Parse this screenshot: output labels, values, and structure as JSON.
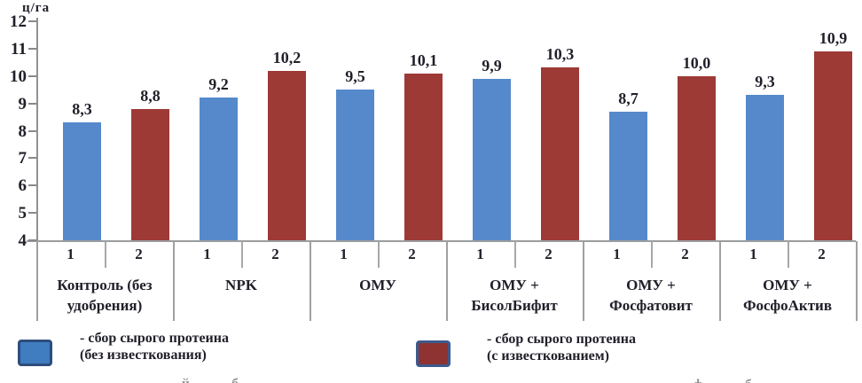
{
  "unit_label": "ц/га",
  "chart_data": {
    "type": "bar",
    "title": "",
    "ylabel": "ц/га",
    "ylim": [
      4,
      12
    ],
    "yticks": [
      12,
      11,
      10,
      9,
      8,
      7,
      6,
      5,
      4
    ],
    "grid": false,
    "legend_position": "bottom",
    "categories": [
      "Контроль (без удобрения)",
      "NPK",
      "ОМУ",
      "ОМУ + БисолБифит",
      "ОМУ + Фосфатовит",
      "ОМУ + ФосфоАктив"
    ],
    "category_lines": [
      [
        "Контроль (без",
        "удобрения)"
      ],
      [
        "NPK",
        ""
      ],
      [
        "ОМУ",
        ""
      ],
      [
        "ОМУ +",
        "БисолБифит"
      ],
      [
        "ОМУ +",
        "Фосфатовит"
      ],
      [
        "ОМУ +",
        "ФосфоАктив"
      ]
    ],
    "bar_slot_numbers": [
      "1",
      "2"
    ],
    "series": [
      {
        "name": "- сбор сырого протеина (без известкования)",
        "color": "#5589cb",
        "values": [
          8.3,
          9.2,
          9.5,
          9.9,
          8.7,
          9.3
        ],
        "value_labels": [
          "8,3",
          "9,2",
          "9,5",
          "9,9",
          "8,7",
          "9,3"
        ]
      },
      {
        "name": "- сбор сырого протеина (с известкованием)",
        "color": "#9d3a36",
        "values": [
          8.8,
          10.2,
          10.1,
          10.3,
          10.0,
          10.9
        ],
        "value_labels": [
          "8,8",
          "10,2",
          "10,1",
          "10,3",
          "10,0",
          "10,9"
        ]
      }
    ]
  },
  "legend": {
    "items": [
      {
        "swatch_fill": "#3f7cc0",
        "swatch_border": "#2e4d7b",
        "line1": "- сбор сырого протеина",
        "line2": "(без известкования)"
      },
      {
        "swatch_fill": "#8e3331",
        "swatch_border": "#3c5a8f",
        "line1": "- сбор сырого протеина",
        "line2": "(с известкованием)"
      }
    ]
  },
  "cropped_caption": {
    "left_fragment": "й б",
    "right_fragment": "ф б"
  },
  "colors": {
    "series1_bar": "#5589cb",
    "series2_bar": "#9d3a36",
    "axis_line": "#8f9193",
    "ink": "#20202a"
  }
}
